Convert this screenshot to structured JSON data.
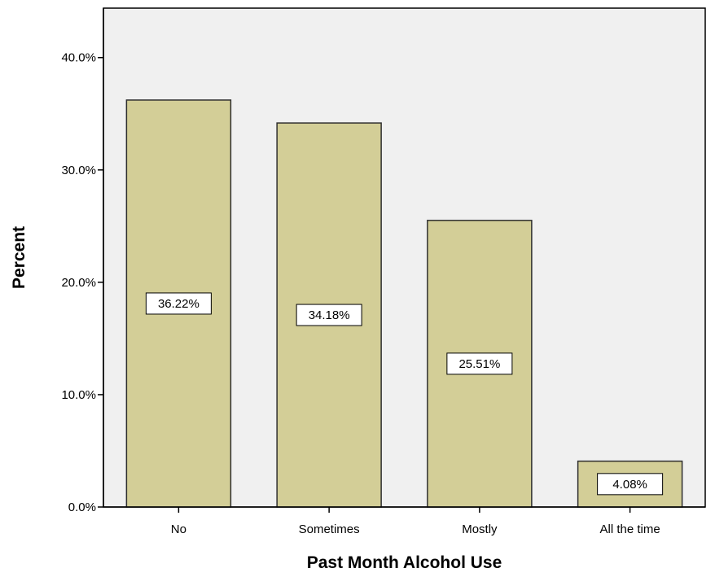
{
  "chart_data": {
    "type": "bar",
    "title": "",
    "xlabel": "Past Month Alcohol Use",
    "ylabel": "Percent",
    "categories": [
      "No",
      "Sometimes",
      "Mostly",
      "All the time"
    ],
    "values": [
      36.22,
      34.18,
      25.51,
      4.08
    ],
    "data_labels": [
      "36.22%",
      "34.18%",
      "25.51%",
      "4.08%"
    ],
    "y_ticks": [
      0,
      10,
      20,
      30,
      40
    ],
    "y_tick_labels": [
      "0.0%",
      "10.0%",
      "20.0%",
      "30.0%",
      "40.0%"
    ],
    "ylim": [
      0,
      44.4
    ],
    "grid": false,
    "legend": "none",
    "colors": {
      "bar_fill": "#d3ce97",
      "bar_stroke": "#2f2f2f",
      "plot_background": "#f0f0f0",
      "axis": "#000000",
      "label_box_fill": "#ffffff"
    }
  }
}
